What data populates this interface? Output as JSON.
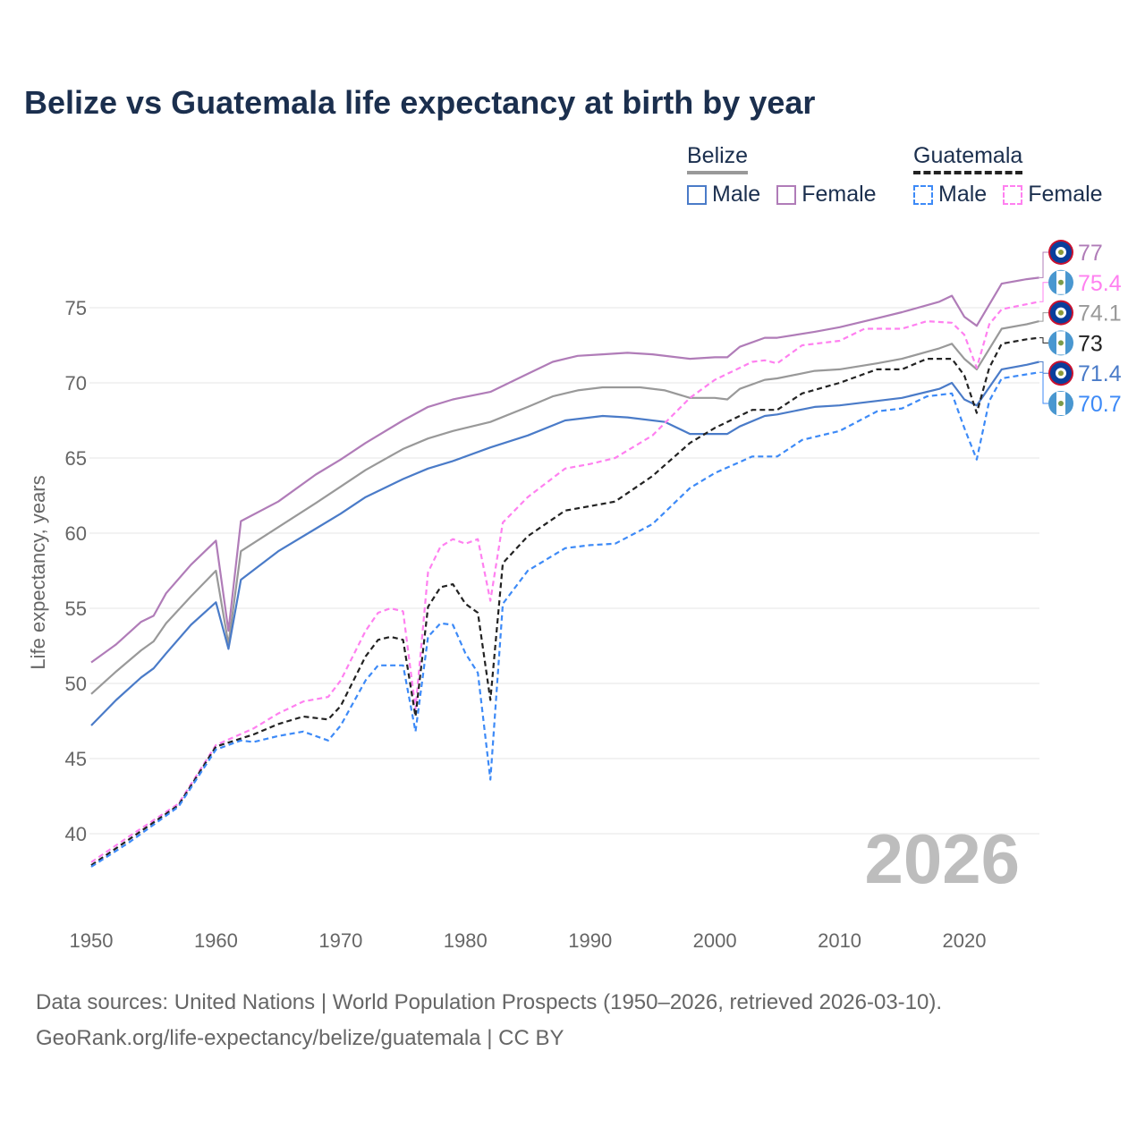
{
  "title": "Belize vs Guatemala life expectancy at birth by year",
  "legend": {
    "belize": {
      "label": "Belize",
      "male": "Male",
      "female": "Female"
    },
    "guatemala": {
      "label": "Guatemala",
      "male": "Male",
      "female": "Female"
    }
  },
  "watermark_year": "2026",
  "footer": {
    "line1": "Data sources: United Nations | World Population Prospects (1950–2026, retrieved 2026-03-10).",
    "line2": "GeoRank.org/life-expectancy/belize/guatemala | CC BY"
  },
  "chart_data": {
    "type": "line",
    "title": "Belize vs Guatemala life expectancy at birth by year",
    "xlabel": "",
    "ylabel": "Life expectancy, years",
    "xlim": [
      1950,
      2026
    ],
    "ylim": [
      36,
      78
    ],
    "xticks": [
      1950,
      1960,
      1970,
      1980,
      1990,
      2000,
      2010,
      2020
    ],
    "yticks": [
      40,
      45,
      50,
      55,
      60,
      65,
      70,
      75
    ],
    "grid": true,
    "legend_position": "top-right",
    "series": [
      {
        "name": "Belize Female",
        "color": "#b07cb8",
        "dash": false,
        "end_label": "77",
        "points": [
          [
            1950,
            51.4
          ],
          [
            1952,
            52.6
          ],
          [
            1954,
            54.1
          ],
          [
            1955,
            54.5
          ],
          [
            1956,
            56
          ],
          [
            1958,
            57.9
          ],
          [
            1960,
            59.5
          ],
          [
            1961,
            53.5
          ],
          [
            1962,
            60.8
          ],
          [
            1965,
            62.1
          ],
          [
            1968,
            63.9
          ],
          [
            1970,
            64.9
          ],
          [
            1972,
            66
          ],
          [
            1975,
            67.5
          ],
          [
            1977,
            68.4
          ],
          [
            1979,
            68.9
          ],
          [
            1982,
            69.4
          ],
          [
            1985,
            70.6
          ],
          [
            1987,
            71.4
          ],
          [
            1989,
            71.8
          ],
          [
            1991,
            71.9
          ],
          [
            1993,
            72
          ],
          [
            1995,
            71.9
          ],
          [
            1998,
            71.6
          ],
          [
            2000,
            71.7
          ],
          [
            2001,
            71.7
          ],
          [
            2002,
            72.4
          ],
          [
            2004,
            73
          ],
          [
            2005,
            73
          ],
          [
            2008,
            73.4
          ],
          [
            2010,
            73.7
          ],
          [
            2013,
            74.3
          ],
          [
            2015,
            74.7
          ],
          [
            2018,
            75.4
          ],
          [
            2019,
            75.8
          ],
          [
            2020,
            74.4
          ],
          [
            2021,
            73.8
          ],
          [
            2023,
            76.6
          ],
          [
            2025,
            76.9
          ],
          [
            2026,
            77
          ]
        ]
      },
      {
        "name": "Belize Total",
        "color": "#999999",
        "dash": false,
        "end_label": "74.1",
        "points": [
          [
            1950,
            49.3
          ],
          [
            1952,
            50.8
          ],
          [
            1954,
            52.2
          ],
          [
            1955,
            52.8
          ],
          [
            1956,
            54
          ],
          [
            1958,
            55.8
          ],
          [
            1960,
            57.5
          ],
          [
            1961,
            52.6
          ],
          [
            1962,
            58.8
          ],
          [
            1965,
            60.4
          ],
          [
            1968,
            62
          ],
          [
            1970,
            63.1
          ],
          [
            1972,
            64.2
          ],
          [
            1975,
            65.6
          ],
          [
            1977,
            66.3
          ],
          [
            1979,
            66.8
          ],
          [
            1982,
            67.4
          ],
          [
            1985,
            68.4
          ],
          [
            1987,
            69.1
          ],
          [
            1989,
            69.5
          ],
          [
            1991,
            69.7
          ],
          [
            1994,
            69.7
          ],
          [
            1996,
            69.5
          ],
          [
            1998,
            69
          ],
          [
            2000,
            69
          ],
          [
            2001,
            68.9
          ],
          [
            2002,
            69.6
          ],
          [
            2004,
            70.2
          ],
          [
            2005,
            70.3
          ],
          [
            2008,
            70.8
          ],
          [
            2010,
            70.9
          ],
          [
            2013,
            71.3
          ],
          [
            2015,
            71.6
          ],
          [
            2018,
            72.3
          ],
          [
            2019,
            72.6
          ],
          [
            2020,
            71.6
          ],
          [
            2021,
            70.9
          ],
          [
            2023,
            73.6
          ],
          [
            2025,
            73.9
          ],
          [
            2026,
            74.1
          ]
        ]
      },
      {
        "name": "Belize Male",
        "color": "#4a7bc8",
        "dash": false,
        "end_label": "71.4",
        "points": [
          [
            1950,
            47.2
          ],
          [
            1952,
            48.9
          ],
          [
            1954,
            50.4
          ],
          [
            1955,
            51
          ],
          [
            1956,
            52
          ],
          [
            1958,
            53.9
          ],
          [
            1960,
            55.4
          ],
          [
            1961,
            52.3
          ],
          [
            1962,
            56.9
          ],
          [
            1965,
            58.8
          ],
          [
            1968,
            60.3
          ],
          [
            1970,
            61.3
          ],
          [
            1972,
            62.4
          ],
          [
            1975,
            63.6
          ],
          [
            1977,
            64.3
          ],
          [
            1979,
            64.8
          ],
          [
            1982,
            65.7
          ],
          [
            1985,
            66.5
          ],
          [
            1988,
            67.5
          ],
          [
            1991,
            67.8
          ],
          [
            1993,
            67.7
          ],
          [
            1996,
            67.4
          ],
          [
            1998,
            66.6
          ],
          [
            2001,
            66.6
          ],
          [
            2002,
            67.1
          ],
          [
            2004,
            67.8
          ],
          [
            2005,
            67.9
          ],
          [
            2008,
            68.4
          ],
          [
            2010,
            68.5
          ],
          [
            2013,
            68.8
          ],
          [
            2015,
            69
          ],
          [
            2018,
            69.6
          ],
          [
            2019,
            70
          ],
          [
            2020,
            68.9
          ],
          [
            2021,
            68.5
          ],
          [
            2023,
            70.9
          ],
          [
            2025,
            71.2
          ],
          [
            2026,
            71.4
          ]
        ]
      },
      {
        "name": "Guatemala Female",
        "color": "#ff80f0",
        "dash": true,
        "end_label": "75.4",
        "points": [
          [
            1950,
            38.1
          ],
          [
            1953,
            39.8
          ],
          [
            1957,
            42
          ],
          [
            1960,
            45.9
          ],
          [
            1963,
            47
          ],
          [
            1965,
            48
          ],
          [
            1967,
            48.8
          ],
          [
            1969,
            49.1
          ],
          [
            1970,
            50.2
          ],
          [
            1972,
            53.5
          ],
          [
            1973,
            54.7
          ],
          [
            1974,
            55
          ],
          [
            1975,
            54.8
          ],
          [
            1976,
            48.3
          ],
          [
            1977,
            57.4
          ],
          [
            1978,
            59.1
          ],
          [
            1979,
            59.6
          ],
          [
            1980,
            59.3
          ],
          [
            1981,
            59.6
          ],
          [
            1982,
            55.5
          ],
          [
            1983,
            60.7
          ],
          [
            1985,
            62.4
          ],
          [
            1988,
            64.3
          ],
          [
            1990,
            64.6
          ],
          [
            1992,
            65
          ],
          [
            1995,
            66.5
          ],
          [
            1998,
            69
          ],
          [
            2000,
            70.2
          ],
          [
            2003,
            71.4
          ],
          [
            2004,
            71.5
          ],
          [
            2005,
            71.3
          ],
          [
            2007,
            72.5
          ],
          [
            2010,
            72.8
          ],
          [
            2012,
            73.6
          ],
          [
            2015,
            73.6
          ],
          [
            2017,
            74.1
          ],
          [
            2019,
            74
          ],
          [
            2020,
            73.2
          ],
          [
            2021,
            71
          ],
          [
            2022,
            73.9
          ],
          [
            2023,
            74.9
          ],
          [
            2026,
            75.4
          ]
        ]
      },
      {
        "name": "Guatemala Total",
        "color": "#222222",
        "dash": true,
        "end_label": "73",
        "points": [
          [
            1950,
            37.9
          ],
          [
            1953,
            39.6
          ],
          [
            1957,
            41.9
          ],
          [
            1960,
            45.8
          ],
          [
            1963,
            46.6
          ],
          [
            1965,
            47.3
          ],
          [
            1967,
            47.8
          ],
          [
            1969,
            47.6
          ],
          [
            1970,
            48.5
          ],
          [
            1972,
            51.8
          ],
          [
            1973,
            52.9
          ],
          [
            1974,
            53.1
          ],
          [
            1975,
            52.9
          ],
          [
            1976,
            47.8
          ],
          [
            1977,
            55.1
          ],
          [
            1978,
            56.4
          ],
          [
            1979,
            56.6
          ],
          [
            1980,
            55.3
          ],
          [
            1981,
            54.7
          ],
          [
            1982,
            48.9
          ],
          [
            1983,
            58
          ],
          [
            1985,
            59.8
          ],
          [
            1988,
            61.5
          ],
          [
            1990,
            61.8
          ],
          [
            1992,
            62.1
          ],
          [
            1995,
            63.8
          ],
          [
            1998,
            66
          ],
          [
            2000,
            67
          ],
          [
            2003,
            68.2
          ],
          [
            2005,
            68.2
          ],
          [
            2007,
            69.3
          ],
          [
            2010,
            70
          ],
          [
            2013,
            70.9
          ],
          [
            2015,
            70.9
          ],
          [
            2017,
            71.6
          ],
          [
            2019,
            71.6
          ],
          [
            2020,
            70.5
          ],
          [
            2021,
            68
          ],
          [
            2022,
            71
          ],
          [
            2023,
            72.6
          ],
          [
            2025,
            72.9
          ],
          [
            2026,
            73
          ]
        ]
      },
      {
        "name": "Guatemala Male",
        "color": "#3d8af7",
        "dash": true,
        "end_label": "70.7",
        "points": [
          [
            1950,
            37.8
          ],
          [
            1953,
            39.4
          ],
          [
            1957,
            41.8
          ],
          [
            1960,
            45.6
          ],
          [
            1962,
            46.2
          ],
          [
            1963,
            46.1
          ],
          [
            1965,
            46.5
          ],
          [
            1967,
            46.8
          ],
          [
            1969,
            46.2
          ],
          [
            1970,
            47.2
          ],
          [
            1972,
            50.2
          ],
          [
            1973,
            51.2
          ],
          [
            1975,
            51.2
          ],
          [
            1976,
            46.8
          ],
          [
            1977,
            53.1
          ],
          [
            1978,
            54
          ],
          [
            1979,
            53.9
          ],
          [
            1980,
            52
          ],
          [
            1981,
            50.7
          ],
          [
            1982,
            43.6
          ],
          [
            1983,
            55.3
          ],
          [
            1985,
            57.5
          ],
          [
            1988,
            59
          ],
          [
            1990,
            59.2
          ],
          [
            1992,
            59.3
          ],
          [
            1995,
            60.6
          ],
          [
            1998,
            63
          ],
          [
            2000,
            64
          ],
          [
            2003,
            65.1
          ],
          [
            2005,
            65.1
          ],
          [
            2007,
            66.2
          ],
          [
            2010,
            66.8
          ],
          [
            2013,
            68.1
          ],
          [
            2015,
            68.3
          ],
          [
            2017,
            69.1
          ],
          [
            2019,
            69.3
          ],
          [
            2020,
            67
          ],
          [
            2021,
            64.9
          ],
          [
            2022,
            68.8
          ],
          [
            2023,
            70.3
          ],
          [
            2026,
            70.7
          ]
        ]
      }
    ]
  }
}
